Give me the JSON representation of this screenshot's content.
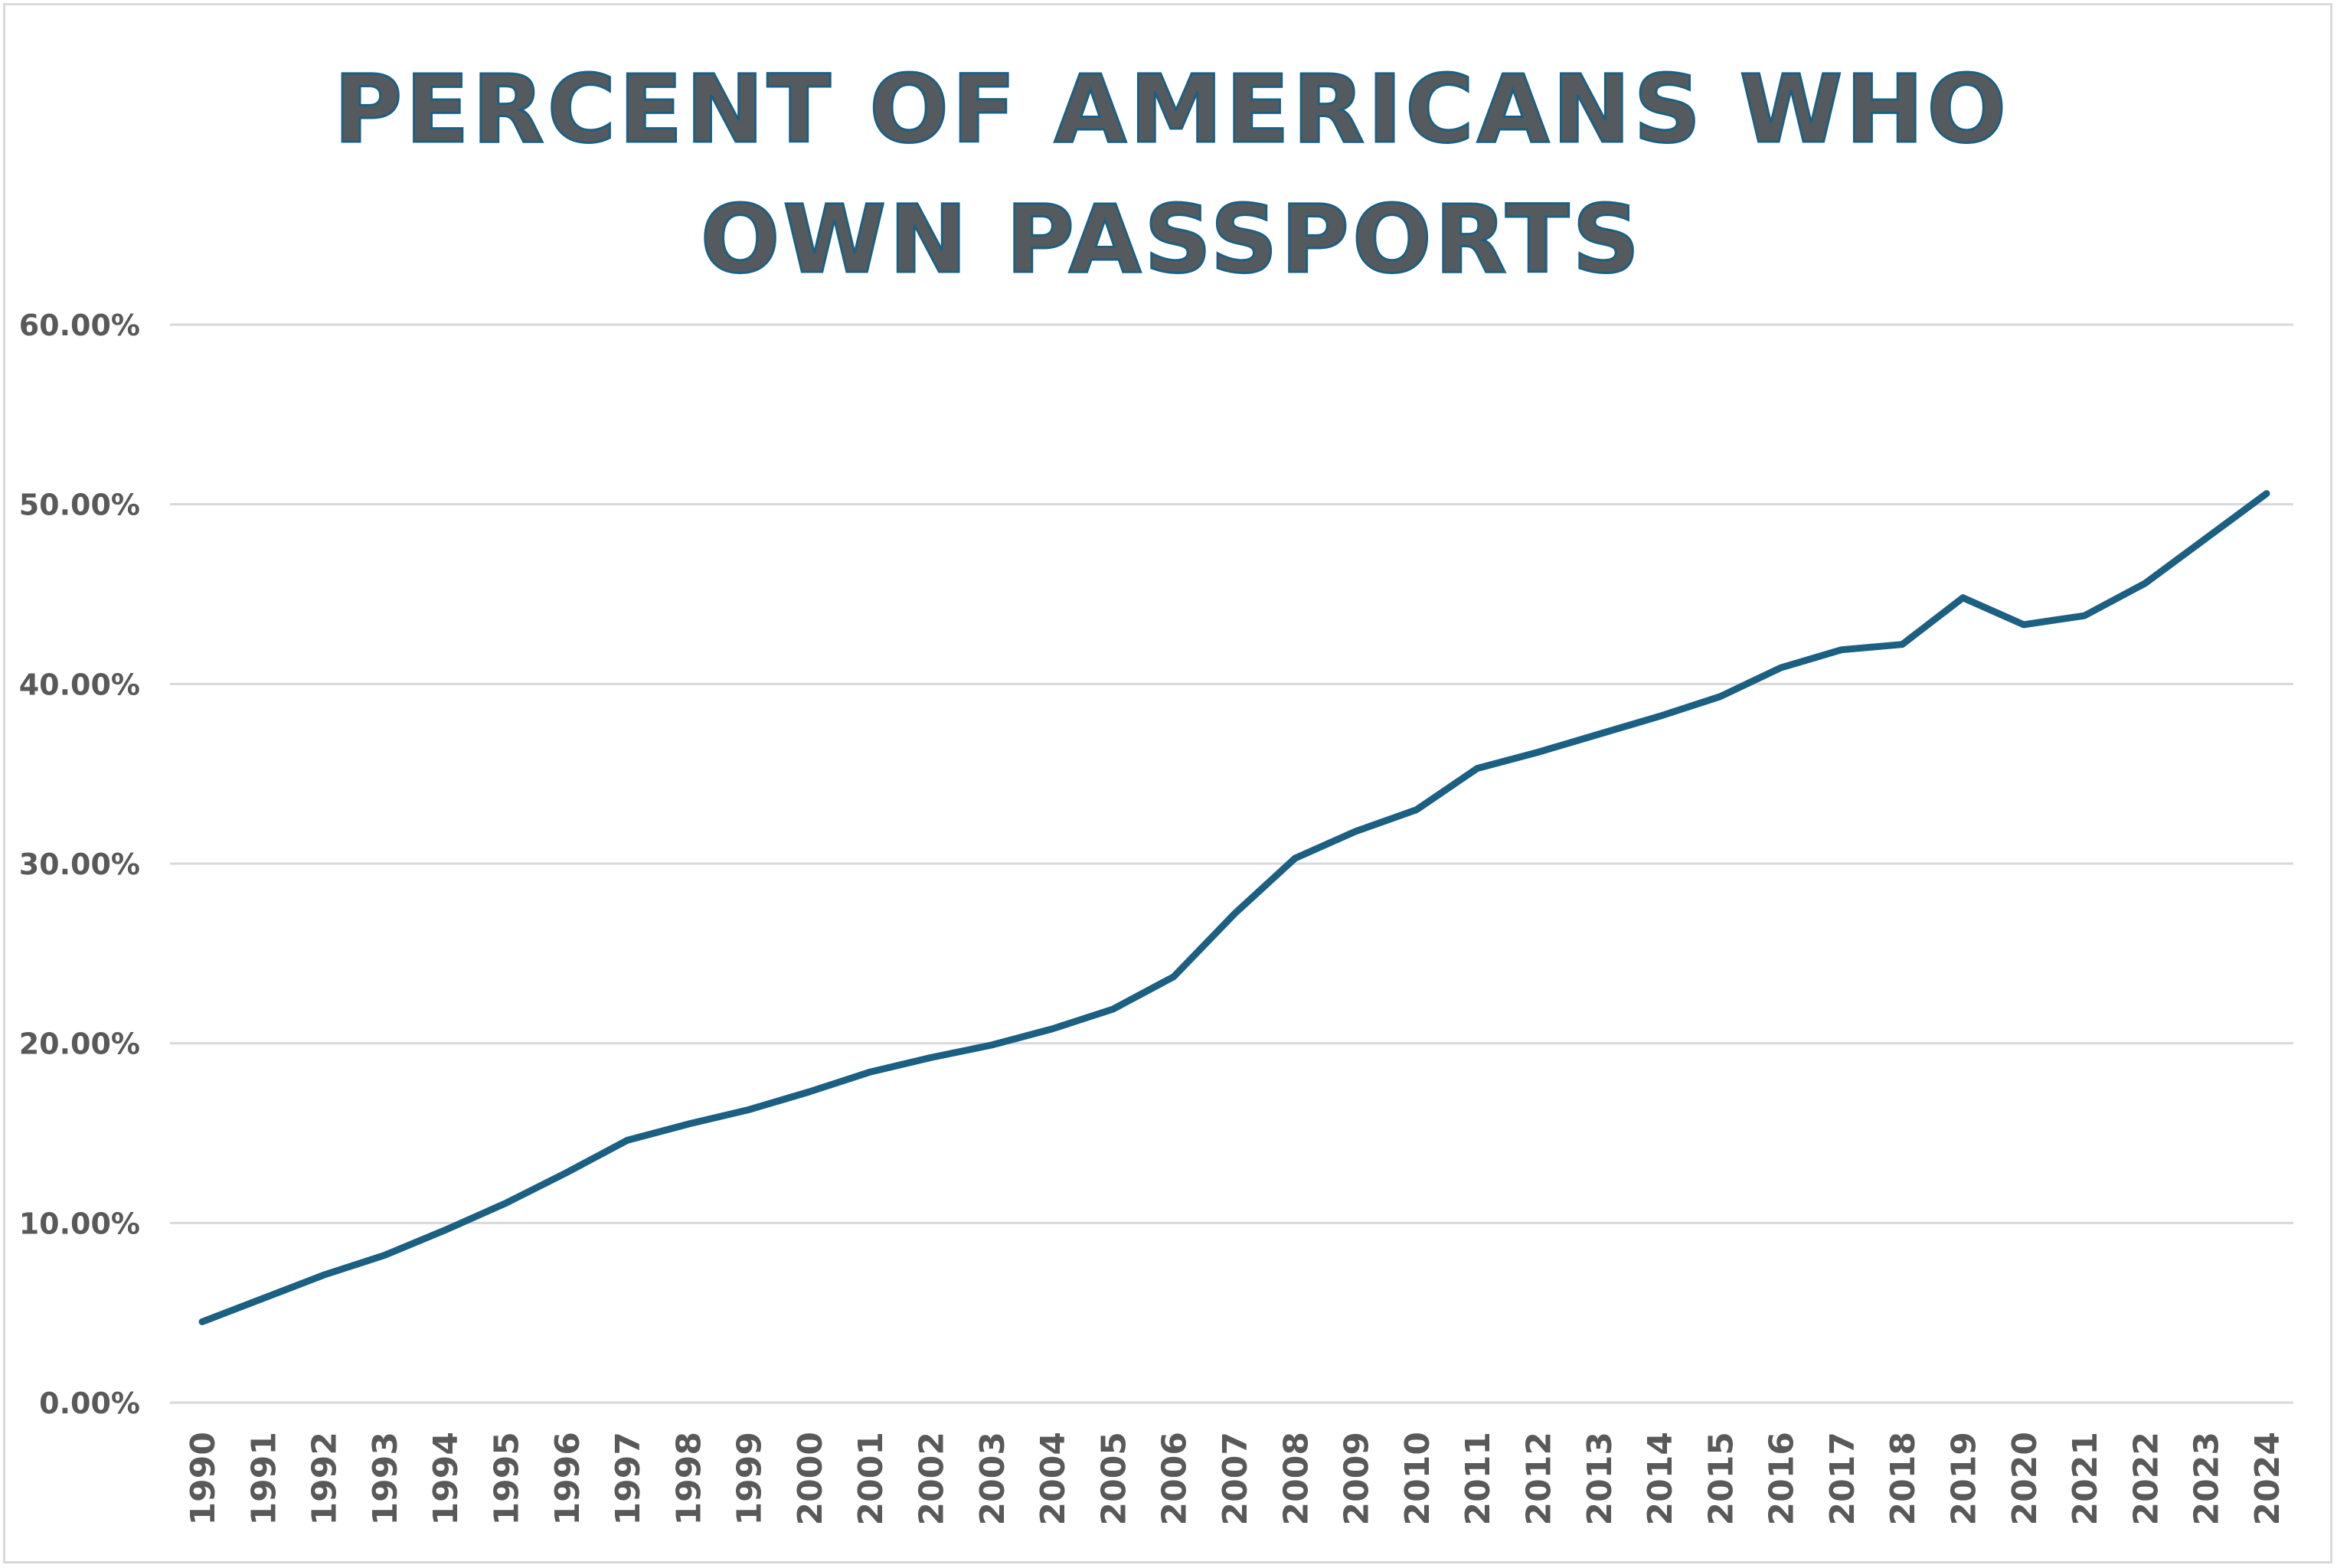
{
  "chart_data": {
    "type": "line",
    "title": "PERCENT OF AMERICANS WHO OWN PASSPORTS",
    "xlabel": "",
    "ylabel": "",
    "ylim": [
      0,
      60
    ],
    "yticks": [
      "0.00%",
      "10.00%",
      "20.00%",
      "30.00%",
      "40.00%",
      "50.00%",
      "60.00%"
    ],
    "grid": true,
    "legend": "none",
    "colors": {
      "line": "#1b6082",
      "grid": "#d9d9d9",
      "text": "#595959"
    },
    "categories": [
      "1990",
      "1991",
      "1992",
      "1993",
      "1994",
      "1995",
      "1996",
      "1997",
      "1998",
      "1999",
      "2000",
      "2001",
      "2002",
      "2003",
      "2004",
      "2005",
      "2006",
      "2007",
      "2008",
      "2009",
      "2010",
      "2011",
      "2012",
      "2013",
      "2014",
      "2015",
      "2016",
      "2017",
      "2018",
      "2019",
      "2020",
      "2021",
      "2022",
      "2023",
      "2024"
    ],
    "series": [
      {
        "name": "Percent of Americans who own passports",
        "values": [
          4.5,
          5.8,
          7.1,
          8.2,
          9.6,
          11.1,
          12.8,
          14.6,
          15.5,
          16.3,
          17.3,
          18.4,
          19.2,
          19.9,
          20.8,
          21.9,
          23.7,
          27.2,
          30.3,
          31.8,
          33.0,
          35.3,
          36.2,
          37.2,
          38.2,
          39.3,
          40.9,
          41.9,
          42.2,
          44.8,
          43.3,
          43.8,
          45.6,
          48.1,
          50.6
        ]
      }
    ]
  }
}
